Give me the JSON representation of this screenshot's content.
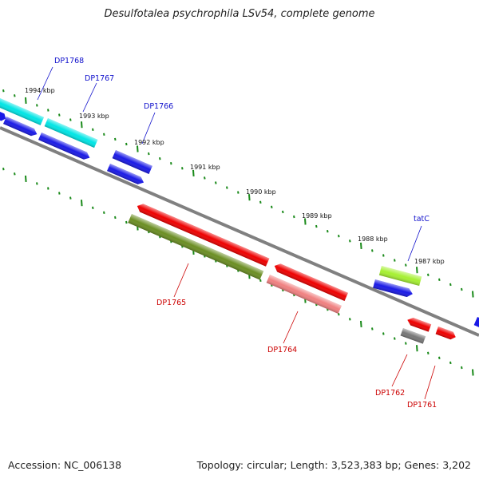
{
  "title": "Desulfotalea psychrophila LSv54, complete genome",
  "footer": {
    "accession": "Accession: NC_006138",
    "summary": "Topology: circular; Length: 3,523,383 bp; Genes: 3,202"
  },
  "ticks": [
    "1994 kbp",
    "1993 kbp",
    "1992 kbp",
    "1991 kbp",
    "1990 kbp",
    "1989 kbp",
    "1988 kbp",
    "1987 kbp"
  ],
  "genes": [
    "DP1768",
    "DP1767",
    "DP1766",
    "tatC",
    "DP1765",
    "DP1764",
    "DP1762",
    "DP1761"
  ],
  "colors": {
    "backbone": "#808080",
    "cyan": "#00e5e5",
    "blue": "#1a1ae6",
    "red": "#ee0000",
    "pink": "#f08080",
    "olive": "#6b8e23",
    "lime": "#a6f032",
    "gray": "#777777",
    "dots": "#1a8a1a",
    "label_blue": "#1111cc",
    "label_red": "#cc0000"
  }
}
